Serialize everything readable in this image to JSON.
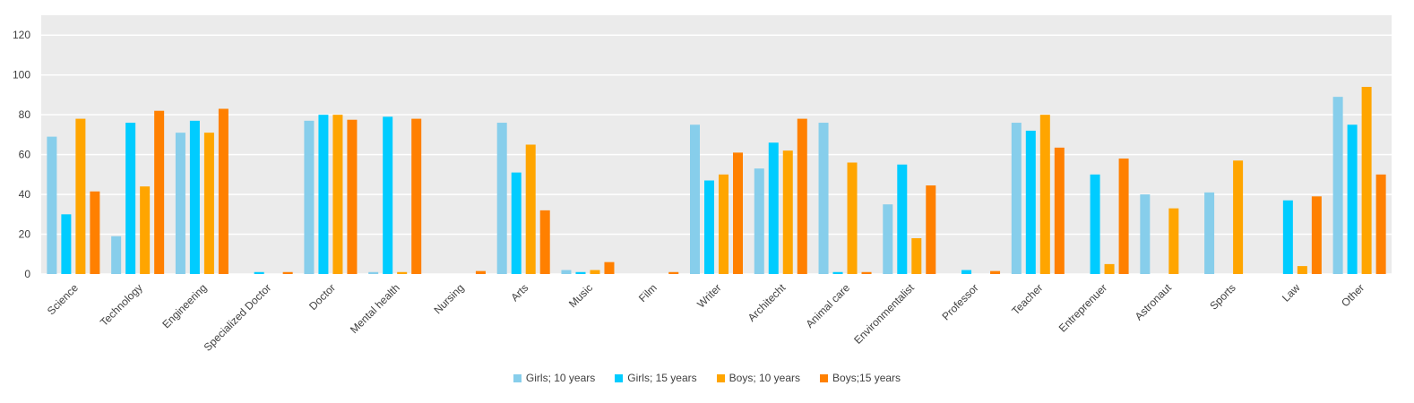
{
  "chart_data": {
    "type": "bar",
    "categories": [
      "Science",
      "Technology",
      "Engineering",
      "Specialized Doctor",
      "Doctor",
      "Mental health",
      "Nursing",
      "Arts",
      "Music",
      "Film",
      "Writer",
      "Architecht",
      "Animal care",
      "Environmentalist",
      "Professor",
      "Teacher",
      "Entreprenuer",
      "Astronaut",
      "Sports",
      "Law",
      "Other"
    ],
    "series": [
      {
        "name": "Girls; 10 years",
        "color": "#87CEEB",
        "values": [
          69,
          19,
          71,
          0,
          77,
          1,
          0,
          76,
          2,
          0,
          75,
          53,
          76,
          35,
          0,
          76,
          0,
          40,
          41,
          0,
          89
        ]
      },
      {
        "name": "Girls; 15 years",
        "color": "#00CCFF",
        "values": [
          30,
          76,
          77,
          1,
          80,
          79,
          0,
          51,
          1,
          0,
          47,
          66,
          1,
          55,
          2,
          72,
          50,
          0,
          0,
          37,
          75
        ]
      },
      {
        "name": "Boys; 10 years",
        "color": "#FFA500",
        "values": [
          78,
          44,
          71,
          0,
          80,
          1,
          0,
          65,
          2,
          0,
          50,
          62,
          56,
          18,
          0,
          80,
          5,
          33,
          57,
          4,
          94
        ]
      },
      {
        "name": "Boys;15 years",
        "color": "#FF8000",
        "values": [
          41.5,
          82,
          83,
          1,
          77.5,
          78,
          1.5,
          32,
          6,
          1,
          61,
          78,
          1,
          44.5,
          1.5,
          63.5,
          58,
          0,
          0,
          39,
          50
        ]
      }
    ],
    "y_ticks": [
      "0",
      "20",
      "40",
      "60",
      "80",
      "100",
      "120"
    ],
    "ylim": [
      0,
      130
    ],
    "grid": true,
    "legend_position": "bottom",
    "plot_background": "#EBEBEB",
    "gridline_color": "#FFFFFF"
  }
}
